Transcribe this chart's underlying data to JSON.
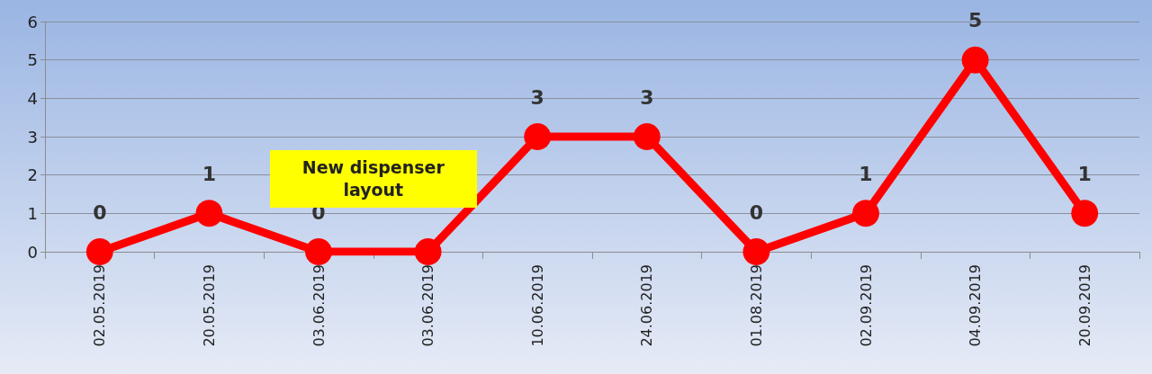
{
  "chart_data": {
    "type": "line",
    "categories": [
      "02.05.2019",
      "20.05.2019",
      "03.06.2019",
      "03.06.2019",
      "10.06.2019",
      "24.06.2019",
      "01.08.2019",
      "02.09.2019",
      "04.09.2019",
      "20.09.2019"
    ],
    "series": [
      {
        "color": "#ff0000",
        "values": [
          0,
          1,
          0,
          0,
          3,
          3,
          0,
          1,
          5,
          1
        ],
        "value_labels": [
          "0",
          "1",
          "0",
          null,
          "3",
          "3",
          "0",
          "1",
          "5",
          "1"
        ]
      }
    ],
    "ylim": [
      0,
      6
    ],
    "yticks": [
      0,
      1,
      2,
      3,
      4,
      5,
      6
    ],
    "grid": "y",
    "marker": "circle",
    "line_style": "solid",
    "annotations": [
      "New dispenser layout"
    ]
  }
}
